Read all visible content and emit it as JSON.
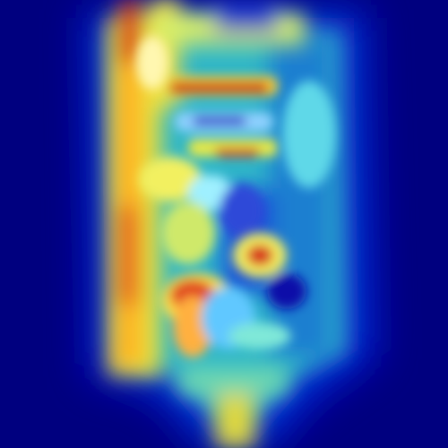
{
  "image": {
    "kind": "heatmap-overlay",
    "colormap": "jet",
    "colors": {
      "background": "#00007f",
      "low": "#0000cc",
      "mid_low": "#1aa6c8",
      "mid": "#7fffd4",
      "mid_high": "#ffff00",
      "high": "#ff8c00",
      "peak": "#c81e1e"
    }
  }
}
